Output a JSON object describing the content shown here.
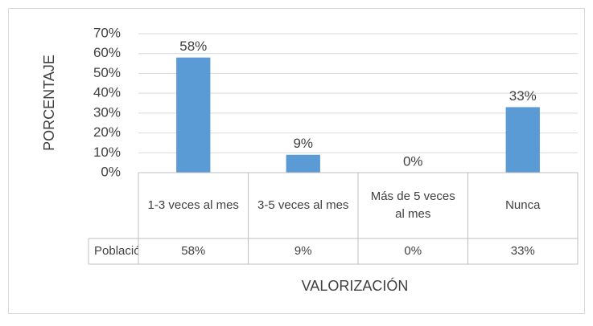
{
  "chart_data": {
    "type": "bar",
    "ylabel": "PORCENTAJE",
    "xlabel": "VALORIZACIÓN",
    "categories": [
      "1-3 veces al mes",
      "3-5 veces al mes",
      "Más de 5 veces al mes",
      "Nunca"
    ],
    "series": [
      {
        "name": "Población",
        "color": "#5b9bd5",
        "values": [
          58,
          9,
          0,
          33
        ],
        "value_labels": [
          "58%",
          "9%",
          "0%",
          "33%"
        ]
      }
    ],
    "ylim": [
      0,
      70
    ],
    "yticks": [
      {
        "value": 0,
        "label": "0%"
      },
      {
        "value": 10,
        "label": "10%"
      },
      {
        "value": 20,
        "label": "20%"
      },
      {
        "value": 30,
        "label": "30%"
      },
      {
        "value": 40,
        "label": "40%"
      },
      {
        "value": 50,
        "label": "50%"
      },
      {
        "value": 60,
        "label": "60%"
      },
      {
        "value": 70,
        "label": "70%"
      }
    ],
    "grid": true,
    "data_table": true
  }
}
